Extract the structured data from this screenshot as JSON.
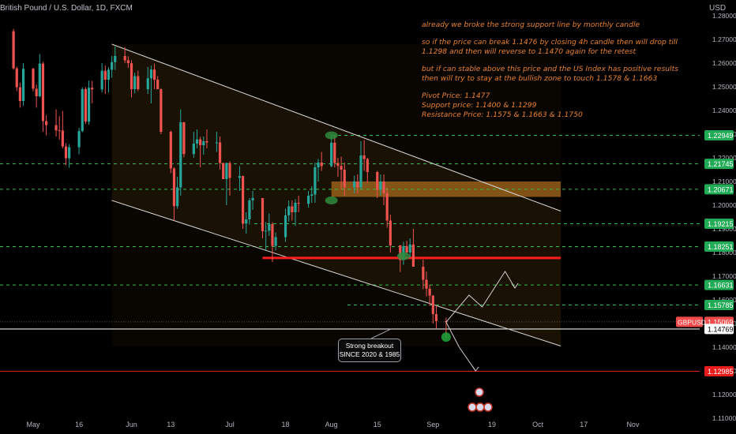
{
  "header": {
    "symbol_title": "British Pound / U.S. Dollar, 1D, FXCM",
    "currency": "USD"
  },
  "analysis_note": {
    "paragraphs": [
      "already we broke the strong support line by monthly candle",
      "so if the price can break 1.1476 by closing 4h candle then will drop till 1.1298 and then will reverse to 1.1470 again for the retest",
      "but if can stable above this price and the US Index has positive results then will try to stay at the bullish zone to touch 1.1578 & 1.1663"
    ],
    "levels": [
      "Pivot Price: 1.1477",
      "Support price: 1.1400 & 1.1299",
      "Resistance Price: 1.1575 & 1.1663 & 1.1750"
    ]
  },
  "callout": {
    "line1": "Strong breakout",
    "line2": "SINCE  2020 & 1985"
  },
  "chart_data": {
    "type": "candlestick",
    "ylim": [
      1.105,
      1.285
    ],
    "y_ticks": [
      1.28,
      1.27,
      1.26,
      1.25,
      1.24,
      1.23,
      1.22,
      1.21,
      1.2,
      1.19,
      1.18,
      1.17,
      1.16,
      1.15,
      1.14,
      1.13,
      1.12,
      1.11
    ],
    "y_tick_labels": [
      "1.28000",
      "1.27000",
      "1.26000",
      "1.25000",
      "1.24000",
      "1.23000",
      "1.22000",
      "1.21000",
      "1.20000",
      "1.19000",
      "1.18000",
      "1.17000",
      "1.16000",
      "1.15000",
      "1.14000",
      "1.13000",
      "1.12000",
      "1.11000"
    ],
    "x_labels": [
      "May",
      "16",
      "Jun",
      "13",
      "Jul",
      "18",
      "Aug",
      "15",
      "Sep",
      "19",
      "Oct",
      "17",
      "Nov"
    ],
    "x_label_dates": [
      "2022-05-02",
      "2022-05-16",
      "2022-06-01",
      "2022-06-13",
      "2022-07-01",
      "2022-07-18",
      "2022-08-01",
      "2022-08-15",
      "2022-09-01",
      "2022-09-19",
      "2022-10-03",
      "2022-10-17",
      "2022-11-01"
    ],
    "candles": [
      [
        "2022-04-26",
        1.2735,
        1.2745,
        1.2572,
        1.2578
      ],
      [
        "2022-04-27",
        1.2578,
        1.2585,
        1.2482,
        1.2498
      ],
      [
        "2022-04-28",
        1.2498,
        1.2518,
        1.2412,
        1.244
      ],
      [
        "2022-04-29",
        1.244,
        1.26,
        1.242,
        1.2576
      ],
      [
        "2022-05-02",
        1.2576,
        1.258,
        1.248,
        1.2492
      ],
      [
        "2022-05-03",
        1.2492,
        1.251,
        1.2412,
        1.246
      ],
      [
        "2022-05-04",
        1.246,
        1.2638,
        1.2455,
        1.2598
      ],
      [
        "2022-05-05",
        1.2598,
        1.2605,
        1.231,
        1.2355
      ],
      [
        "2022-05-06",
        1.2355,
        1.238,
        1.2295,
        1.2338
      ],
      [
        "2022-05-09",
        1.2338,
        1.2405,
        1.229,
        1.2316
      ],
      [
        "2022-05-10",
        1.2316,
        1.2376,
        1.2276,
        1.2315
      ],
      [
        "2022-05-11",
        1.2315,
        1.2398,
        1.224,
        1.2248
      ],
      [
        "2022-05-12",
        1.2248,
        1.2262,
        1.217,
        1.2198
      ],
      [
        "2022-05-13",
        1.2198,
        1.2258,
        1.2158,
        1.2245
      ],
      [
        "2022-05-16",
        1.2245,
        1.2327,
        1.2215,
        1.2313
      ],
      [
        "2022-05-17",
        1.2313,
        1.2498,
        1.2308,
        1.249
      ],
      [
        "2022-05-18",
        1.249,
        1.2498,
        1.2343,
        1.2353
      ],
      [
        "2022-05-19",
        1.2353,
        1.2526,
        1.234,
        1.2496
      ],
      [
        "2022-05-20",
        1.2496,
        1.2525,
        1.243,
        1.2489
      ],
      [
        "2022-05-23",
        1.2489,
        1.26,
        1.2476,
        1.2568
      ],
      [
        "2022-05-24",
        1.2568,
        1.259,
        1.247,
        1.253
      ],
      [
        "2022-05-25",
        1.253,
        1.2583,
        1.2476,
        1.2572
      ],
      [
        "2022-05-26",
        1.2572,
        1.263,
        1.2538,
        1.2604
      ],
      [
        "2022-05-27",
        1.2604,
        1.267,
        1.2571,
        1.263
      ],
      [
        "2022-05-30",
        1.263,
        1.2667,
        1.26,
        1.2612
      ],
      [
        "2022-05-31",
        1.2612,
        1.2629,
        1.258,
        1.26
      ],
      [
        "2022-06-01",
        1.26,
        1.2612,
        1.2455,
        1.249
      ],
      [
        "2022-06-02",
        1.249,
        1.256,
        1.2472,
        1.2545
      ],
      [
        "2022-06-03",
        1.2545,
        1.2568,
        1.2482,
        1.249
      ],
      [
        "2022-06-06",
        1.249,
        1.2584,
        1.247,
        1.2536
      ],
      [
        "2022-06-07",
        1.2536,
        1.259,
        1.243,
        1.2573
      ],
      [
        "2022-06-08",
        1.2573,
        1.2598,
        1.249,
        1.253
      ],
      [
        "2022-06-09",
        1.253,
        1.2545,
        1.249,
        1.249
      ],
      [
        "2022-06-10",
        1.249,
        1.2494,
        1.23,
        1.231
      ],
      [
        "2022-06-13",
        1.231,
        1.2315,
        1.2136,
        1.2155
      ],
      [
        "2022-06-14",
        1.2155,
        1.216,
        1.1935,
        1.1996
      ],
      [
        "2022-06-15",
        1.1996,
        1.212,
        1.1985,
        1.2075
      ],
      [
        "2022-06-16",
        1.2075,
        1.2405,
        1.204,
        1.235
      ],
      [
        "2022-06-17",
        1.235,
        1.2352,
        1.2202,
        1.2216
      ],
      [
        "2022-06-20",
        1.2216,
        1.231,
        1.22,
        1.226
      ],
      [
        "2022-06-21",
        1.226,
        1.232,
        1.224,
        1.2278
      ],
      [
        "2022-06-22",
        1.2278,
        1.2289,
        1.216,
        1.2253
      ],
      [
        "2022-06-23",
        1.2253,
        1.229,
        1.2213,
        1.227
      ],
      [
        "2022-06-24",
        1.227,
        1.232,
        1.224,
        1.2265
      ],
      [
        "2022-06-27",
        1.2265,
        1.231,
        1.2225,
        1.2265
      ],
      [
        "2022-06-28",
        1.2265,
        1.229,
        1.215,
        1.2178
      ],
      [
        "2022-06-29",
        1.2178,
        1.218,
        1.211,
        1.211
      ],
      [
        "2022-06-30",
        1.211,
        1.218,
        1.2,
        1.2178
      ],
      [
        "2022-07-01",
        1.2178,
        1.2185,
        1.204,
        1.2115
      ],
      [
        "2022-07-04",
        1.2115,
        1.2165,
        1.206,
        1.2123
      ],
      [
        "2022-07-05",
        1.2123,
        1.2125,
        1.19,
        1.1922
      ],
      [
        "2022-07-06",
        1.1922,
        1.197,
        1.188,
        1.194
      ],
      [
        "2022-07-07",
        1.194,
        1.203,
        1.1918,
        1.202
      ],
      [
        "2022-07-08",
        1.202,
        1.206,
        1.198,
        1.203
      ],
      [
        "2022-07-11",
        1.203,
        1.203,
        1.186,
        1.189
      ],
      [
        "2022-07-12",
        1.189,
        1.1928,
        1.181,
        1.1892
      ],
      [
        "2022-07-13",
        1.1892,
        1.1965,
        1.187,
        1.192
      ],
      [
        "2022-07-14",
        1.192,
        1.1928,
        1.176,
        1.1828
      ],
      [
        "2022-07-15",
        1.1828,
        1.1885,
        1.1809,
        1.1865
      ],
      [
        "2022-07-18",
        1.1865,
        1.1985,
        1.1845,
        1.1957
      ],
      [
        "2022-07-19",
        1.1957,
        1.202,
        1.193,
        1.1995
      ],
      [
        "2022-07-20",
        1.1995,
        1.202,
        1.1935,
        1.197
      ],
      [
        "2022-07-21",
        1.197,
        1.2025,
        1.1913,
        1.201
      ],
      [
        "2022-07-22",
        1.201,
        1.204,
        1.197,
        1.2006
      ],
      [
        "2022-07-25",
        1.2006,
        1.206,
        1.199,
        1.204
      ],
      [
        "2022-07-26",
        1.204,
        1.208,
        1.201,
        1.2045
      ],
      [
        "2022-07-27",
        1.2045,
        1.218,
        1.201,
        1.216
      ],
      [
        "2022-07-28",
        1.216,
        1.2195,
        1.21,
        1.218
      ],
      [
        "2022-07-29",
        1.218,
        1.2225,
        1.2145,
        1.2165
      ],
      [
        "2022-08-01",
        1.2165,
        1.2295,
        1.216,
        1.2264
      ],
      [
        "2022-08-02",
        1.2264,
        1.2295,
        1.216,
        1.2178
      ],
      [
        "2022-08-03",
        1.2178,
        1.22,
        1.212,
        1.2166
      ],
      [
        "2022-08-04",
        1.2166,
        1.2205,
        1.2065,
        1.215
      ],
      [
        "2022-08-05",
        1.215,
        1.218,
        1.204,
        1.2075
      ],
      [
        "2022-08-08",
        1.2075,
        1.2125,
        1.205,
        1.21
      ],
      [
        "2022-08-09",
        1.21,
        1.213,
        1.205,
        1.2075
      ],
      [
        "2022-08-10",
        1.2075,
        1.227,
        1.2065,
        1.221
      ],
      [
        "2022-08-11",
        1.221,
        1.2275,
        1.2145,
        1.2195
      ],
      [
        "2022-08-12",
        1.2195,
        1.22,
        1.2095,
        1.214
      ],
      [
        "2022-08-15",
        1.214,
        1.2145,
        1.203,
        1.2065
      ],
      [
        "2022-08-16",
        1.2065,
        1.213,
        1.204,
        1.21
      ],
      [
        "2022-08-17",
        1.21,
        1.213,
        1.2,
        1.205
      ],
      [
        "2022-08-18",
        1.205,
        1.2075,
        1.1905,
        1.1935
      ],
      [
        "2022-08-19",
        1.1935,
        1.196,
        1.18,
        1.183
      ],
      [
        "2022-08-22",
        1.183,
        1.1832,
        1.1718,
        1.1768
      ],
      [
        "2022-08-23",
        1.1768,
        1.1845,
        1.1748,
        1.1827
      ],
      [
        "2022-08-24",
        1.1827,
        1.185,
        1.1789,
        1.18
      ],
      [
        "2022-08-25",
        1.18,
        1.186,
        1.1778,
        1.1834
      ],
      [
        "2022-08-26",
        1.1834,
        1.19,
        1.174,
        1.174
      ],
      [
        "2022-08-29",
        1.174,
        1.177,
        1.1645,
        1.1685
      ],
      [
        "2022-08-30",
        1.1685,
        1.172,
        1.1615,
        1.1647
      ],
      [
        "2022-08-31",
        1.1647,
        1.1665,
        1.1575,
        1.1618
      ],
      [
        "2022-09-01",
        1.1618,
        1.162,
        1.15,
        1.154
      ],
      [
        "2022-09-02",
        1.154,
        1.1578,
        1.148,
        1.151
      ],
      [
        "2022-09-05",
        1.151,
        1.1525,
        1.144,
        1.1506
      ]
    ],
    "channel_lines": [
      {
        "from": [
          "2022-05-26",
          1.268
        ],
        "to": [
          "2022-10-10",
          1.1975
        ]
      },
      {
        "from": [
          "2022-05-26",
          1.202
        ],
        "to": [
          "2022-10-10",
          1.1405
        ]
      }
    ],
    "horizontal_levels": [
      1.22949,
      1.21745,
      1.20671,
      1.19215,
      1.18251,
      1.16631,
      1.15785,
      1.15069,
      1.14769,
      1.12985
    ],
    "price_labels": [
      {
        "text": "1.22949",
        "value": 1.22949,
        "color": "#22ab57"
      },
      {
        "text": "1.21745",
        "value": 1.21745,
        "color": "#22ab57"
      },
      {
        "text": "1.20671",
        "value": 1.20671,
        "color": "#22ab57"
      },
      {
        "text": "1.19215",
        "value": 1.19215,
        "color": "#22ab57"
      },
      {
        "text": "1.18251",
        "value": 1.18251,
        "color": "#22ab57"
      },
      {
        "text": "1.16631",
        "value": 1.16631,
        "color": "#22ab57"
      },
      {
        "text": "1.15785",
        "value": 1.15785,
        "color": "#22ab57"
      },
      {
        "text": "1.15069",
        "value": 1.15069,
        "color": "#f04a4a"
      },
      {
        "text": "1.14769",
        "value": 1.14769,
        "color": "#ffffff"
      },
      {
        "text": "1.12985",
        "value": 1.12985,
        "color": "#e91b1b"
      }
    ],
    "symbol_tag": {
      "text": "GBPUSD",
      "value": 1.15069
    },
    "resistance_line": {
      "value": 1.1777,
      "from": "2022-07-11",
      "to": "2022-10-10"
    },
    "support_zone": {
      "top": 1.21,
      "bottom": 1.2035,
      "from": "2022-08-01",
      "to": "2022-10-10"
    },
    "pivot_line": {
      "value": 1.14769
    },
    "target_line": {
      "value": 1.12985
    },
    "markers": [
      {
        "date": "2022-08-01",
        "value": 1.2295,
        "color": "#2e8b3c",
        "kind": "top"
      },
      {
        "date": "2022-08-01",
        "value": 1.202,
        "color": "#2e8b3c",
        "kind": "bottom"
      },
      {
        "date": "2022-08-23",
        "value": 1.1785,
        "color": "#2e8b3c",
        "kind": "mid"
      },
      {
        "date": "2022-09-05",
        "value": 1.1443,
        "color": "#1fa83a",
        "kind": "current"
      }
    ],
    "projection_up": [
      [
        "2022-09-05",
        1.1506
      ],
      [
        "2022-09-12",
        1.162
      ],
      [
        "2022-09-16",
        1.157
      ],
      [
        "2022-09-23",
        1.172
      ],
      [
        "2022-09-26",
        1.165
      ]
    ],
    "projection_down": [
      [
        "2022-09-05",
        1.1506
      ],
      [
        "2022-09-09",
        1.14
      ],
      [
        "2022-09-14",
        1.13
      ]
    ],
    "grid": false,
    "legend": "none"
  }
}
